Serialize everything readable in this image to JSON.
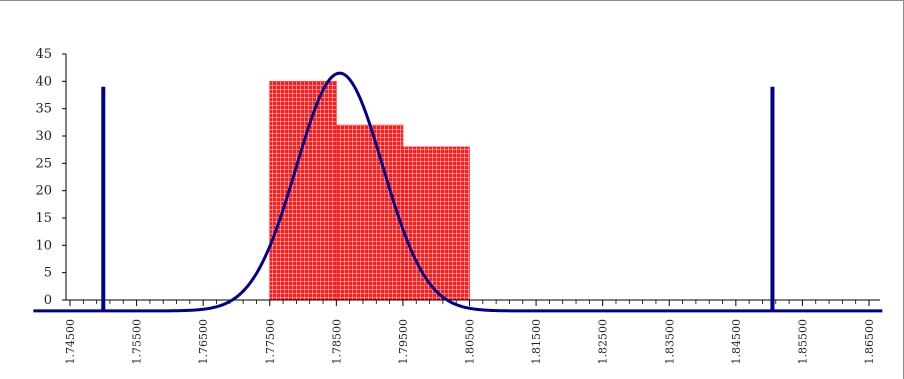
{
  "chart_data": {
    "type": "bar",
    "title": "",
    "xlabel": "",
    "ylabel": "",
    "ylim": [
      0,
      45
    ],
    "xlim": [
      1.745,
      1.865
    ],
    "y_ticks": [
      "0",
      "5",
      "10",
      "15",
      "20",
      "25",
      "30",
      "35",
      "40",
      "45"
    ],
    "x_ticks": [
      "1.74500",
      "1.75500",
      "1.76500",
      "1.77500",
      "1.78500",
      "1.79500",
      "1.80500",
      "1.81500",
      "1.82500",
      "1.83500",
      "1.84500",
      "1.85500",
      "1.86500"
    ],
    "grid": false,
    "legend": "none",
    "bars": [
      {
        "x_start": 1.775,
        "x_end": 1.785,
        "value": 40
      },
      {
        "x_start": 1.785,
        "x_end": 1.795,
        "value": 32
      },
      {
        "x_start": 1.795,
        "x_end": 1.805,
        "value": 28
      }
    ],
    "normal_curve": {
      "mean": 1.7855,
      "sd": 0.0065,
      "peak": 41.5,
      "baseline": -2
    },
    "spec_limits": [
      {
        "x": 1.75,
        "top": 39,
        "bottom": -2
      },
      {
        "x": 1.8505,
        "top": 39,
        "bottom": -2
      }
    ],
    "colors": {
      "bar": "#ff1a1a",
      "bar_hatch": "#ffffff",
      "curve": "#00008b",
      "axis": "#000000"
    }
  }
}
